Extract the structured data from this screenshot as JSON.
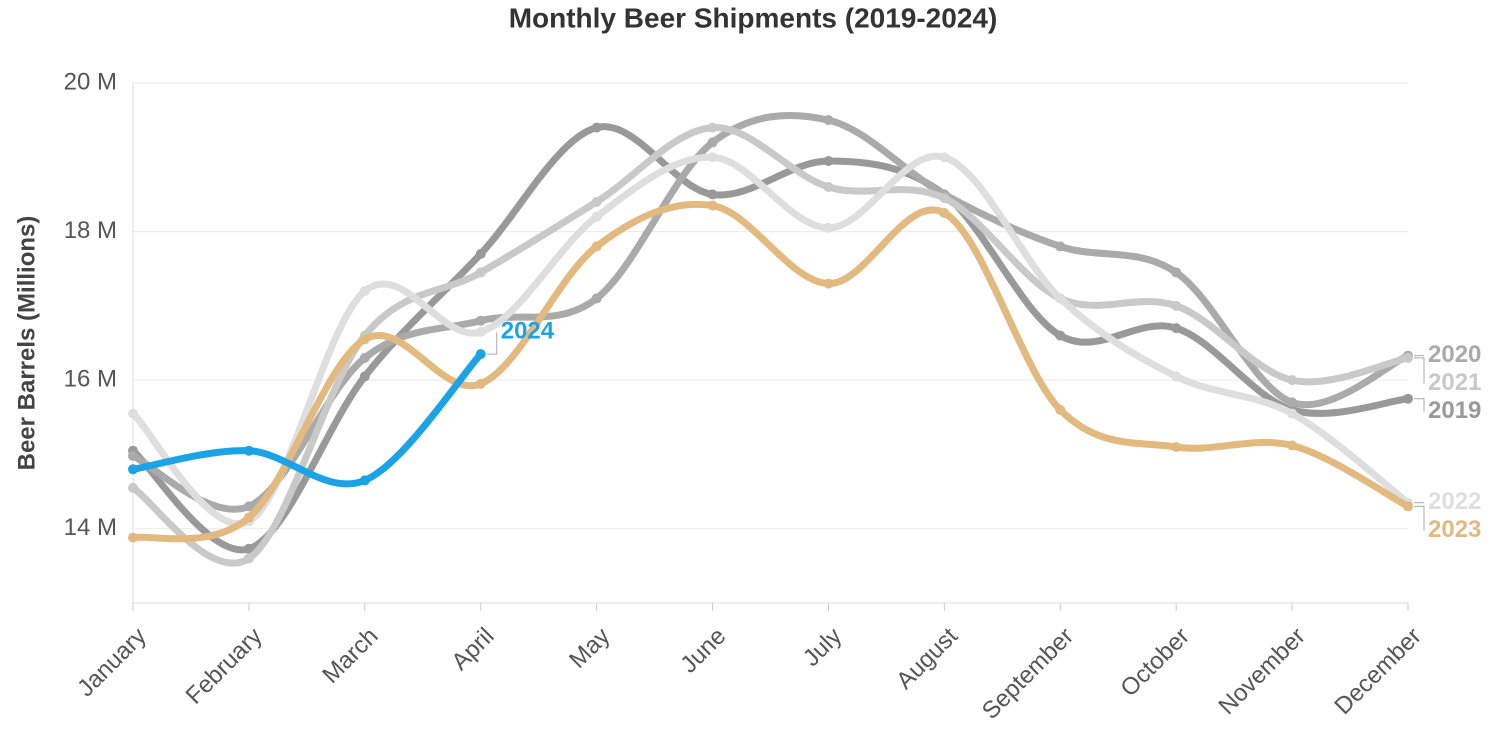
{
  "chart_data": {
    "type": "line",
    "title": "Monthly Beer Shipments (2019-2024)",
    "y_label": "Beer Barrels (Millions)",
    "categories": [
      "January",
      "February",
      "March",
      "April",
      "May",
      "June",
      "July",
      "August",
      "September",
      "October",
      "November",
      "December"
    ],
    "ylim": [
      13,
      20
    ],
    "yticks": [
      {
        "value": 14,
        "label": "14 M"
      },
      {
        "value": 16,
        "label": "16 M"
      },
      {
        "value": 18,
        "label": "18 M"
      },
      {
        "value": 20,
        "label": "20 M"
      }
    ],
    "grid": true,
    "series": [
      {
        "name": "2019",
        "color": "#999999",
        "values": [
          15.05,
          13.73,
          16.05,
          17.7,
          19.4,
          18.5,
          18.95,
          18.5,
          16.6,
          16.7,
          15.6,
          15.75
        ]
      },
      {
        "name": "2020",
        "color": "#aaaaaa",
        "values": [
          14.98,
          14.3,
          16.3,
          16.8,
          17.1,
          19.2,
          19.5,
          18.5,
          17.8,
          17.45,
          15.7,
          16.33
        ]
      },
      {
        "name": "2021",
        "color": "#c9c9c9",
        "values": [
          14.55,
          13.6,
          16.6,
          17.45,
          18.4,
          19.4,
          18.6,
          18.45,
          17.1,
          17.0,
          16.0,
          16.3
        ]
      },
      {
        "name": "2022",
        "color": "#dedede",
        "values": [
          15.55,
          14.1,
          17.2,
          16.65,
          18.2,
          19.0,
          18.05,
          19.0,
          17.1,
          16.05,
          15.55,
          14.35
        ]
      },
      {
        "name": "2023",
        "color": "#e2b97f",
        "values": [
          13.88,
          14.15,
          16.55,
          15.95,
          17.8,
          18.35,
          17.3,
          18.25,
          15.6,
          15.1,
          15.12,
          14.3
        ]
      },
      {
        "name": "2024",
        "color": "#1ba3e6",
        "values": [
          14.8,
          15.05,
          14.65,
          16.35,
          null,
          null,
          null,
          null,
          null,
          null,
          null,
          null
        ]
      }
    ]
  }
}
